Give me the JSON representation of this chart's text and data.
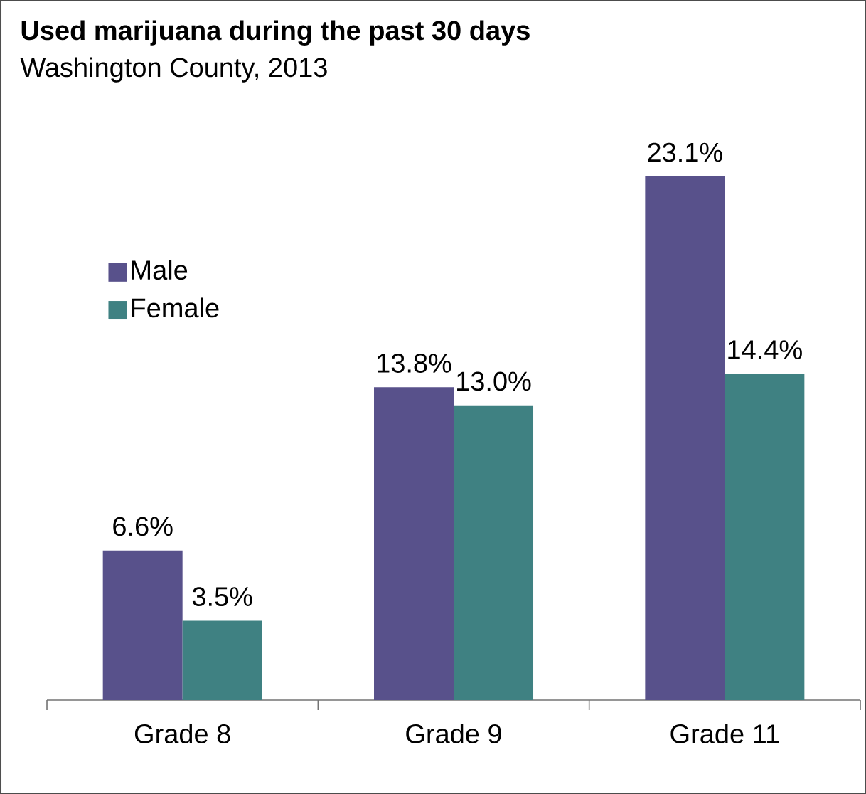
{
  "chart_data": {
    "type": "bar",
    "title": "Used marijuana during the past 30 days",
    "subtitle": "Washington County, 2013",
    "categories": [
      "Grade 8",
      "Grade 9",
      "Grade 11"
    ],
    "series": [
      {
        "name": "Male",
        "color": "#58518b",
        "values": [
          6.6,
          13.8,
          23.1
        ],
        "value_labels": [
          "6.6%",
          "13.8%",
          "23.1%"
        ]
      },
      {
        "name": "Female",
        "color": "#3f8182",
        "values": [
          3.5,
          13.0,
          14.4
        ],
        "value_labels": [
          "3.5%",
          "13.0%",
          "14.4%"
        ]
      }
    ],
    "legend": "top left",
    "tick_labels": "x"
  }
}
